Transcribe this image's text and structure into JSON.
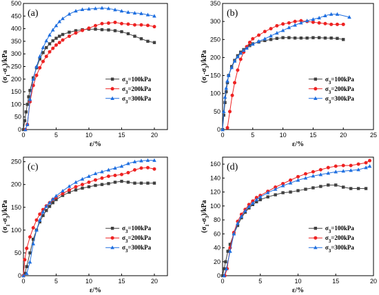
{
  "chart_data": [
    {
      "type": "line",
      "panel_label": "(a)",
      "xlabel": "ε/%",
      "ylabel": "(σ1-σ3)/kPa",
      "xlim": [
        0,
        22
      ],
      "ylim": [
        0,
        500
      ],
      "xticks": [
        0,
        5,
        10,
        15,
        20
      ],
      "yticks": [
        0,
        50,
        100,
        150,
        200,
        250,
        300,
        350,
        400,
        450,
        500
      ],
      "legend_position": "center-right",
      "series": [
        {
          "name": "σ3=100kPa",
          "color": "#404040",
          "marker": "square",
          "x": [
            0,
            0.2,
            0.4,
            0.6,
            0.8,
            1,
            1.5,
            2,
            2.5,
            3,
            3.5,
            4,
            4.5,
            5,
            5.5,
            6,
            7,
            8,
            9,
            10,
            11,
            12,
            13,
            14,
            15,
            16,
            17,
            18,
            19,
            20
          ],
          "y": [
            0,
            35,
            70,
            100,
            130,
            155,
            205,
            245,
            280,
            305,
            325,
            340,
            352,
            362,
            370,
            377,
            386,
            392,
            396,
            398,
            398,
            396,
            395,
            392,
            388,
            380,
            370,
            360,
            350,
            345
          ]
        },
        {
          "name": "σ3=200kPa",
          "color": "#ee2222",
          "marker": "circle",
          "x": [
            0.3,
            0.6,
            1,
            1.5,
            2,
            2.5,
            3,
            3.5,
            4,
            4.5,
            5,
            5.5,
            6,
            7,
            8,
            9,
            10,
            11,
            12,
            13,
            14,
            15,
            16,
            17,
            18,
            19,
            20
          ],
          "y": [
            0,
            20,
            110,
            175,
            215,
            245,
            270,
            290,
            308,
            322,
            335,
            345,
            355,
            370,
            383,
            393,
            402,
            412,
            420,
            422,
            425,
            420,
            418,
            415,
            415,
            413,
            408
          ]
        },
        {
          "name": "σ3=300kPa",
          "color": "#1f6fe0",
          "marker": "triangle",
          "x": [
            0.3,
            0.6,
            1,
            1.5,
            2,
            2.5,
            3,
            3.5,
            4,
            4.5,
            5,
            5.5,
            6,
            7,
            8,
            9,
            10,
            11,
            12,
            13,
            14,
            15,
            16,
            17,
            18,
            19,
            20
          ],
          "y": [
            0,
            20,
            120,
            200,
            250,
            290,
            325,
            352,
            375,
            395,
            412,
            428,
            440,
            458,
            470,
            476,
            478,
            480,
            482,
            480,
            475,
            470,
            465,
            462,
            460,
            455,
            450
          ]
        }
      ]
    },
    {
      "type": "line",
      "panel_label": "(b)",
      "xlabel": "ε/%",
      "ylabel": "(σ1-σ3)/kPa",
      "xlim": [
        0,
        25
      ],
      "ylim": [
        0,
        350
      ],
      "xticks": [
        0,
        5,
        10,
        15,
        20,
        25
      ],
      "yticks": [
        0,
        50,
        100,
        150,
        200,
        250,
        300,
        350
      ],
      "legend_position": "center-right",
      "series": [
        {
          "name": "σ3=100kPa",
          "color": "#404040",
          "marker": "square",
          "x": [
            0,
            0.2,
            0.4,
            0.6,
            0.8,
            1,
            1.5,
            2,
            2.5,
            3,
            3.5,
            4,
            4.5,
            5,
            6,
            7,
            8,
            9,
            10,
            11,
            12,
            13,
            14,
            15,
            16,
            17,
            18,
            19,
            20
          ],
          "y": [
            0,
            40,
            75,
            105,
            130,
            150,
            175,
            192,
            205,
            215,
            222,
            228,
            233,
            238,
            243,
            247,
            250,
            253,
            255,
            255,
            254,
            254,
            254,
            255,
            255,
            254,
            254,
            253,
            250
          ]
        },
        {
          "name": "σ3=200kPa",
          "color": "#ee2222",
          "marker": "circle",
          "x": [
            0.8,
            1.2,
            1.6,
            2,
            2.5,
            3,
            3.5,
            4,
            4.5,
            5,
            6,
            7,
            8,
            9,
            10,
            11,
            12,
            13,
            14,
            15,
            16,
            17,
            18,
            19,
            20
          ],
          "y": [
            5,
            50,
            95,
            130,
            165,
            195,
            215,
            230,
            242,
            252,
            262,
            272,
            280,
            288,
            293,
            296,
            300,
            302,
            300,
            298,
            296,
            294,
            292,
            292,
            292
          ]
        },
        {
          "name": "σ3=300kPa",
          "color": "#1f6fe0",
          "marker": "triangle",
          "x": [
            0,
            0.2,
            0.4,
            0.6,
            0.8,
            1,
            1.5,
            2,
            2.5,
            3,
            3.5,
            4,
            5,
            6,
            7,
            8,
            9,
            10,
            11,
            12,
            13,
            14,
            15,
            16,
            17,
            18,
            19,
            21
          ],
          "y": [
            0,
            50,
            90,
            115,
            135,
            150,
            172,
            190,
            202,
            212,
            220,
            226,
            237,
            245,
            252,
            260,
            268,
            275,
            283,
            290,
            296,
            302,
            306,
            310,
            316,
            320,
            320,
            312
          ]
        }
      ]
    },
    {
      "type": "line",
      "panel_label": "(c)",
      "xlabel": "ε/%",
      "ylabel": "(σ1-σ3)/kPa",
      "xlim": [
        0,
        22
      ],
      "ylim": [
        0,
        260
      ],
      "xticks": [
        0,
        5,
        10,
        15,
        20
      ],
      "yticks": [
        0,
        50,
        100,
        150,
        200,
        250
      ],
      "legend_position": "center-right",
      "series": [
        {
          "name": "σ3=100kPa",
          "color": "#404040",
          "marker": "square",
          "x": [
            0,
            0.2,
            0.5,
            1,
            1.5,
            2,
            2.5,
            3,
            3.5,
            4,
            4.5,
            5,
            6,
            7,
            8,
            9,
            10,
            11,
            12,
            13,
            14,
            15,
            16,
            17,
            18,
            19,
            20
          ],
          "y": [
            0,
            5,
            20,
            50,
            80,
            100,
            118,
            132,
            143,
            152,
            160,
            167,
            176,
            183,
            188,
            192,
            195,
            198,
            200,
            202,
            205,
            207,
            205,
            203,
            203,
            203,
            203
          ]
        },
        {
          "name": "σ3=200kPa",
          "color": "#ee2222",
          "marker": "circle",
          "x": [
            0,
            0.2,
            0.5,
            1,
            1.5,
            2,
            2.5,
            3,
            3.5,
            4,
            4.5,
            5,
            6,
            7,
            8,
            9,
            10,
            11,
            12,
            13,
            14,
            15,
            16,
            17,
            18,
            19,
            20
          ],
          "y": [
            0,
            35,
            60,
            85,
            105,
            122,
            135,
            145,
            153,
            160,
            167,
            172,
            180,
            188,
            195,
            200,
            205,
            210,
            214,
            218,
            220,
            222,
            226,
            232,
            236,
            237,
            234
          ]
        },
        {
          "name": "σ3=300kPa",
          "color": "#1f6fe0",
          "marker": "triangle",
          "x": [
            0,
            0.5,
            1,
            1.5,
            2,
            2.5,
            3,
            3.5,
            4,
            4.5,
            5,
            6,
            7,
            8,
            9,
            10,
            11,
            12,
            13,
            14,
            15,
            16,
            17,
            18,
            19,
            20
          ],
          "y": [
            0,
            5,
            30,
            70,
            100,
            122,
            140,
            152,
            160,
            168,
            175,
            186,
            196,
            205,
            212,
            218,
            224,
            228,
            232,
            236,
            240,
            246,
            250,
            252,
            253,
            253
          ]
        }
      ]
    },
    {
      "type": "line",
      "panel_label": "(d)",
      "xlabel": "ε/%",
      "ylabel": "(σ1-σ3)/kPa",
      "xlim": [
        0,
        20
      ],
      "ylim": [
        0,
        170
      ],
      "xticks": [
        0,
        5,
        10,
        15,
        20
      ],
      "yticks": [
        0,
        20,
        40,
        60,
        80,
        100,
        120,
        140,
        160
      ],
      "legend_position": "center-right",
      "series": [
        {
          "name": "σ3=100kPa",
          "color": "#404040",
          "marker": "square",
          "x": [
            0,
            0.2,
            0.4,
            0.7,
            1,
            1.5,
            2,
            2.5,
            3,
            3.5,
            4,
            4.5,
            5,
            6,
            7,
            8,
            9,
            10,
            11,
            12,
            13,
            14,
            15,
            16,
            17,
            18,
            19
          ],
          "y": [
            0,
            10,
            20,
            35,
            45,
            60,
            72,
            83,
            91,
            97,
            102,
            106,
            109,
            113,
            116,
            119,
            120,
            122,
            124,
            126,
            128,
            130,
            130,
            127,
            125,
            125,
            125
          ]
        },
        {
          "name": "σ3=200kPa",
          "color": "#ee2222",
          "marker": "circle",
          "x": [
            0.3,
            0.6,
            1,
            1.5,
            2,
            2.5,
            3,
            3.5,
            4,
            4.5,
            5,
            6,
            7,
            8,
            9,
            10,
            11,
            12,
            13,
            14,
            15,
            16,
            17,
            18,
            19,
            19.5
          ],
          "y": [
            0,
            10,
            40,
            62,
            78,
            88,
            95,
            102,
            107,
            112,
            115,
            121,
            127,
            132,
            137,
            142,
            146,
            149,
            152,
            155,
            157,
            158,
            158,
            160,
            162,
            165
          ]
        },
        {
          "name": "σ3=300kPa",
          "color": "#1f6fe0",
          "marker": "triangle",
          "x": [
            0.2,
            0.5,
            1,
            1.5,
            2,
            2.5,
            3,
            3.5,
            4,
            4.5,
            5,
            6,
            7,
            8,
            9,
            10,
            11,
            12,
            13,
            14,
            15,
            16,
            17,
            18,
            19,
            19.5
          ],
          "y": [
            0,
            10,
            35,
            60,
            75,
            85,
            93,
            99,
            104,
            109,
            113,
            119,
            124,
            129,
            133,
            137,
            140,
            143,
            145,
            147,
            149,
            150,
            151,
            152,
            155,
            157
          ]
        }
      ]
    }
  ]
}
